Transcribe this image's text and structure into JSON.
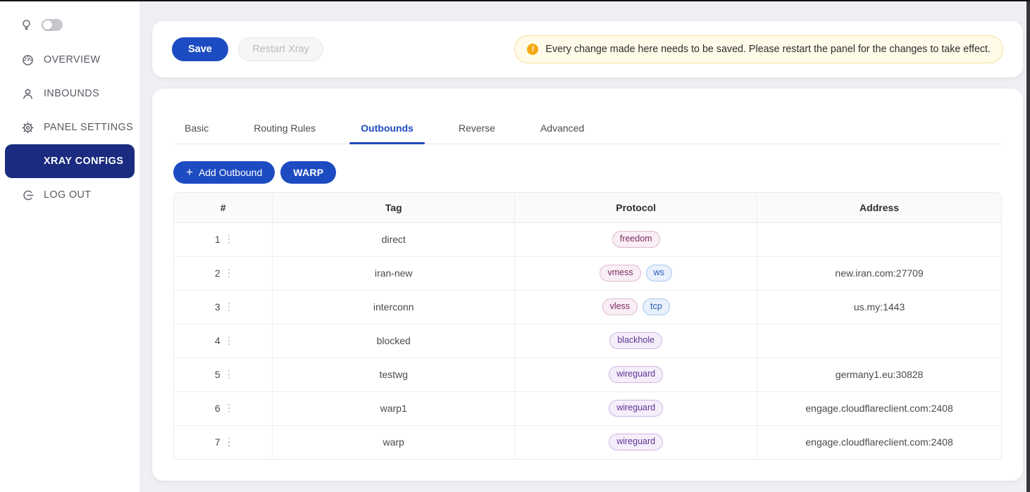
{
  "sidebar": {
    "theme_toggle": {
      "state": "off"
    },
    "items": [
      {
        "label": "OVERVIEW",
        "icon": "dashboard-icon",
        "active": false
      },
      {
        "label": "INBOUNDS",
        "icon": "user-icon",
        "active": false
      },
      {
        "label": "PANEL SETTINGS",
        "icon": "gear-icon",
        "active": false
      },
      {
        "label": "XRAY CONFIGS",
        "icon": "wrench-icon",
        "active": true
      },
      {
        "label": "LOG OUT",
        "icon": "logout-icon",
        "active": false
      }
    ]
  },
  "toolbar": {
    "save_label": "Save",
    "restart_label": "Restart Xray",
    "alert_icon": "warning-circle-icon",
    "alert_text": "Every change made here needs to be saved. Please restart the panel for the changes to take effect."
  },
  "tabs": [
    {
      "label": "Basic",
      "active": false
    },
    {
      "label": "Routing Rules",
      "active": false
    },
    {
      "label": "Outbounds",
      "active": true
    },
    {
      "label": "Reverse",
      "active": false
    },
    {
      "label": "Advanced",
      "active": false
    }
  ],
  "actions": {
    "add_outbound_label": "Add Outbound",
    "add_outbound_icon": "plus-icon",
    "warp_label": "WARP"
  },
  "table": {
    "columns": [
      "#",
      "Tag",
      "Protocol",
      "Address"
    ],
    "rows": [
      {
        "num": "1",
        "tag": "direct",
        "protocols": [
          {
            "text": "freedom",
            "color": "pink"
          }
        ],
        "address": ""
      },
      {
        "num": "2",
        "tag": "iran-new",
        "protocols": [
          {
            "text": "vmess",
            "color": "pink"
          },
          {
            "text": "ws",
            "color": "blue"
          }
        ],
        "address": "new.iran.com:27709"
      },
      {
        "num": "3",
        "tag": "interconn",
        "protocols": [
          {
            "text": "vless",
            "color": "pink"
          },
          {
            "text": "tcp",
            "color": "blue"
          }
        ],
        "address": "us.my:1443"
      },
      {
        "num": "4",
        "tag": "blocked",
        "protocols": [
          {
            "text": "blackhole",
            "color": "purple"
          }
        ],
        "address": ""
      },
      {
        "num": "5",
        "tag": "testwg",
        "protocols": [
          {
            "text": "wireguard",
            "color": "purple"
          }
        ],
        "address": "germany1.eu:30828"
      },
      {
        "num": "6",
        "tag": "warp1",
        "protocols": [
          {
            "text": "wireguard",
            "color": "purple"
          }
        ],
        "address": "engage.cloudflareclient.com:2408"
      },
      {
        "num": "7",
        "tag": "warp",
        "protocols": [
          {
            "text": "wireguard",
            "color": "purple"
          }
        ],
        "address": "engage.cloudflareclient.com:2408"
      }
    ]
  },
  "colors": {
    "primary_button": "#1d4cc2",
    "sidebar_active": "#1a2b80",
    "tab_active": "#1d49c0",
    "warning_bg": "#fffbe8",
    "warning_border": "#f6dd9a",
    "warning_icon": "#f6a914",
    "badge_pink_text": "#7c2c60",
    "badge_blue_text": "#2c5cb4",
    "badge_purple_text": "#5f3394"
  }
}
